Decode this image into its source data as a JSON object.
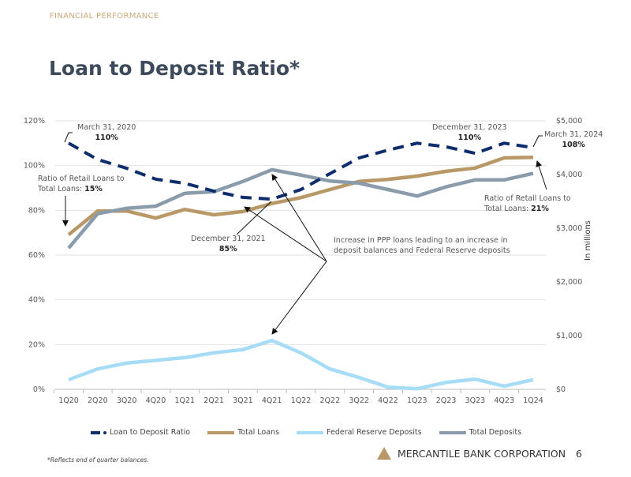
{
  "header": {
    "section": "FINANCIAL PERFORMANCE",
    "title": "Loan to Deposit Ratio*"
  },
  "chart_data": {
    "type": "line",
    "categories": [
      "1Q20",
      "2Q20",
      "3Q20",
      "4Q20",
      "1Q21",
      "2Q21",
      "3Q21",
      "4Q21",
      "1Q22",
      "2Q22",
      "3Q22",
      "4Q22",
      "1Q23",
      "2Q23",
      "3Q23",
      "4Q23",
      "1Q24"
    ],
    "y_left": {
      "ticks": [
        "0%",
        "20%",
        "40%",
        "60%",
        "80%",
        "100%",
        "120%"
      ],
      "range": [
        0,
        120
      ]
    },
    "y_right": {
      "label": "In millions",
      "ticks": [
        "$0",
        "$1,000",
        "$2,000",
        "$3,000",
        "$4,000",
        "$5,000"
      ],
      "range": [
        0,
        5000
      ]
    },
    "grid": true,
    "legend_position": "bottom",
    "series": [
      {
        "name": "Loan to Deposit Ratio",
        "axis": "left",
        "style": "dashed",
        "color": "#0d2d6c",
        "values": [
          110,
          102.7,
          98.8,
          93.9,
          92.1,
          88.6,
          85.8,
          85,
          89.3,
          96.4,
          103.4,
          106.9,
          110,
          108.4,
          105.5,
          110,
          108
        ]
      },
      {
        "name": "Total Loans",
        "axis": "right",
        "color": "#b89867",
        "values": [
          2880,
          3320,
          3320,
          3190,
          3350,
          3250,
          3310,
          3460,
          3570,
          3720,
          3870,
          3910,
          3970,
          4060,
          4120,
          4310,
          4320
        ]
      },
      {
        "name": "Federal Reserve Deposits",
        "axis": "right",
        "color": "#a6dcf5",
        "values": [
          180,
          380,
          490,
          540,
          590,
          680,
          740,
          910,
          680,
          380,
          220,
          40,
          10,
          130,
          190,
          60,
          180
        ]
      },
      {
        "name": "Total Deposits",
        "axis": "right",
        "color": "#8a9cab",
        "values": [
          2630,
          3270,
          3370,
          3410,
          3650,
          3680,
          3870,
          4090,
          3990,
          3880,
          3840,
          3720,
          3600,
          3770,
          3900,
          3900,
          4020
        ]
      }
    ],
    "annotations": [
      {
        "date": "March 31, 2020",
        "value": "110%"
      },
      {
        "text": "Ratio of Retail Loans to",
        "text2": "Total Loans:",
        "value": "15%"
      },
      {
        "date": "December 31, 2021",
        "value": "85%"
      },
      {
        "date": "December 31, 2023",
        "value": "110%"
      },
      {
        "date": "March 31, 2024",
        "value": "108%"
      },
      {
        "text": "Ratio of Retail Loans to",
        "text2": "Total Loans:",
        "value": "21%"
      },
      {
        "text": "Increase in PPP loans leading to an increase in",
        "text2": "deposit balances and Federal Reserve deposits"
      }
    ]
  },
  "footer": {
    "note": "*Reflects end of quarter balances.",
    "brand": "MERCANTILE BANK CORPORATION",
    "page": "6",
    "brand_color": "#b89867"
  }
}
